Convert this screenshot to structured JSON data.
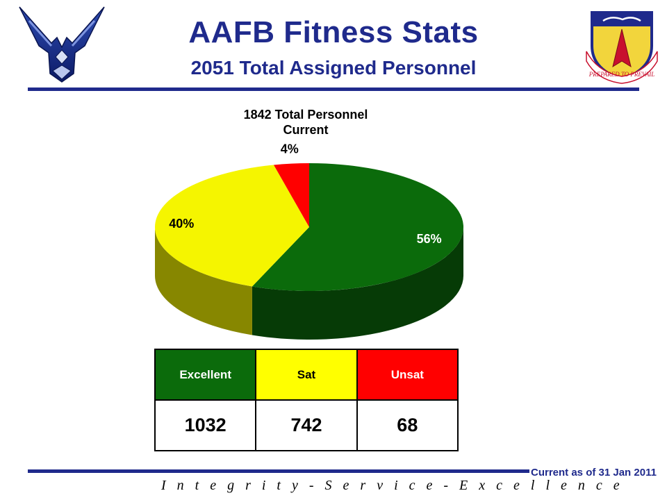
{
  "header": {
    "title": "AAFB Fitness Stats",
    "subtitle": "2051 Total Assigned Personnel"
  },
  "chart_data": {
    "type": "pie",
    "title_lines": [
      "1842 Total Personnel",
      "Current"
    ],
    "categories": [
      "Excellent",
      "Sat",
      "Unsat"
    ],
    "values": [
      1032,
      742,
      68
    ],
    "percent_labels": [
      "56%",
      "40%",
      "4%"
    ],
    "colors": [
      "#0b6b0b",
      "#f5f500",
      "#ff0000"
    ],
    "style": "3d-pie"
  },
  "table": {
    "headers": [
      "Excellent",
      "Sat",
      "Unsat"
    ],
    "values": [
      "1032",
      "742",
      "68"
    ],
    "header_colors": [
      "#0b6b0b",
      "#ffff00",
      "#ff0000"
    ],
    "header_text_colors": [
      "#ffffff",
      "#000000",
      "#ffffff"
    ]
  },
  "footer": {
    "motto": "I n t e g r i t y  -  S e r v i c e  -  E x c e l l e n c e",
    "as_of": "Current as of 31 Jan 2011"
  },
  "logos": {
    "left": "air-force-wings-logo",
    "right": "wing-shield-emblem",
    "right_motto": "PREPARED TO PREVAIL"
  },
  "colors": {
    "brand_blue": "#1f2a8c"
  }
}
